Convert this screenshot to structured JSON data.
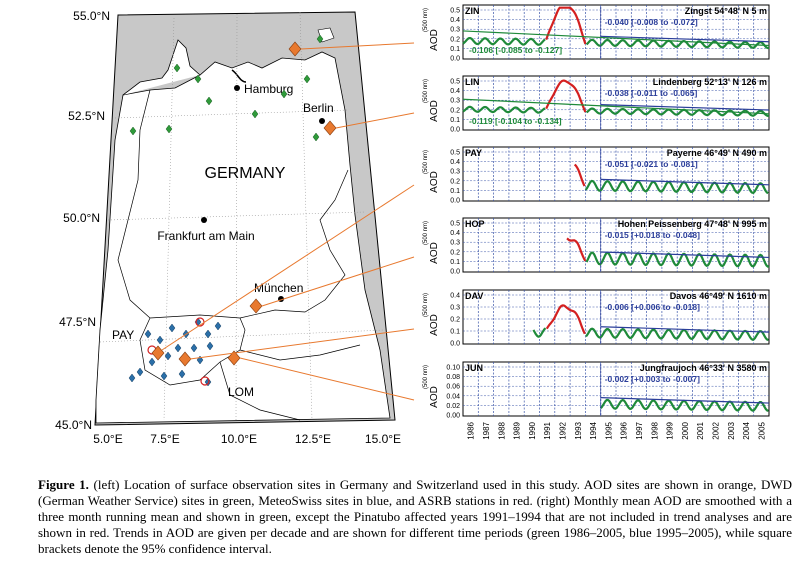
{
  "map": {
    "country_label": "GERMANY",
    "lat_labels": [
      "55.0°N",
      "52.5°N",
      "50.0°N",
      "47.5°N",
      "45.0°N"
    ],
    "lon_labels": [
      "5.0°E",
      "7.5°E",
      "10.0°E",
      "12.5°E",
      "15.0°E"
    ],
    "cities": [
      {
        "id": "hamburg",
        "label": "Hamburg"
      },
      {
        "id": "berlin",
        "label": "Berlin"
      },
      {
        "id": "frankfurt",
        "label": "Frankfurt am Main"
      },
      {
        "id": "muenchen",
        "label": "München"
      }
    ],
    "site_labels": [
      {
        "id": "pay",
        "label": "PAY"
      },
      {
        "id": "lom",
        "label": "LOM"
      }
    ],
    "colors": {
      "aod": "#e8792f",
      "dwd": "#2f9a3a",
      "meteoswiss": "#2b6fa8",
      "asrb": "#d42020",
      "land": "#ffffff",
      "sea": "#c8c8c8"
    }
  },
  "panels": [
    {
      "code": "ZIN",
      "title": "Zingst  54°48' N   5 m",
      "trend_blue": "-0.040 [-0.008 to -0.072]",
      "trend_green": "-0.106 [-0.085 to -0.127]",
      "ylabel": "AOD",
      "ylabel_sub": "(500 nm)",
      "yticks": [
        "0.0",
        "0.1",
        "0.2",
        "0.3",
        "0.4",
        "0.5"
      ]
    },
    {
      "code": "LIN",
      "title": "Lindenberg  52°13' N  126 m",
      "trend_blue": "-0.038 [-0.011 to -0.065]",
      "trend_green": "-0.119 [-0.104 to -0.134]",
      "ylabel": "AOD",
      "ylabel_sub": "(500 nm)",
      "yticks": [
        "0.0",
        "0.1",
        "0.2",
        "0.3",
        "0.4",
        "0.5"
      ]
    },
    {
      "code": "PAY",
      "title": "Payerne  46°49' N  490 m",
      "trend_blue": "-0.051 [-0.021 to -0.081]",
      "trend_green": "",
      "ylabel": "AOD",
      "ylabel_sub": "(500 nm)",
      "yticks": [
        "0.0",
        "0.1",
        "0.2",
        "0.3",
        "0.4",
        "0.5"
      ]
    },
    {
      "code": "HOP",
      "title": "Hohen Peissenberg  47°48' N  995 m",
      "trend_blue": "-0.015 [+0.018 to -0.048]",
      "trend_green": "",
      "ylabel": "AOD",
      "ylabel_sub": "(500 nm)",
      "yticks": [
        "0.0",
        "0.1",
        "0.2",
        "0.3",
        "0.4",
        "0.5"
      ]
    },
    {
      "code": "DAV",
      "title": "Davos  46°49' N  1610 m",
      "trend_blue": "-0.006 [+0.006 to -0.018]",
      "trend_green": "",
      "ylabel": "AOD",
      "ylabel_sub": "(500 nm)",
      "yticks": [
        "0.0",
        "0.1",
        "0.2",
        "0.3",
        "0.4"
      ]
    },
    {
      "code": "JUN",
      "title": "Jungfraujoch  46°33' N  3580 m",
      "trend_blue": "-0.002 [+0.003 to -0.007]",
      "trend_green": "",
      "ylabel": "AOD",
      "ylabel_sub": "(500 nm)",
      "yticks": [
        "0.00",
        "0.02",
        "0.04",
        "0.06",
        "0.08",
        "0.10"
      ]
    }
  ],
  "years": [
    "1986",
    "1987",
    "1988",
    "1989",
    "1990",
    "1991",
    "1992",
    "1993",
    "1994",
    "1995",
    "1996",
    "1997",
    "1998",
    "1999",
    "2000",
    "2001",
    "2002",
    "2003",
    "2004",
    "2005"
  ],
  "caption": {
    "label": "Figure 1.",
    "text": "(left) Location of surface observation sites in Germany and Switzerland used in this study. AOD sites are shown in orange, DWD (German Weather Service) sites in green, MeteoSwiss sites in blue, and ASRB stations in red. (right) Monthly mean AOD are smoothed with a three month running mean and shown in green, except the Pinatubo affected years 1991–1994 that are not included in trend analyses and are shown in red. Trends in AOD are given per decade and are shown for different time periods (green 1986–2005, blue 1995–2005), while square brackets denote the 95% confidence interval."
  }
}
